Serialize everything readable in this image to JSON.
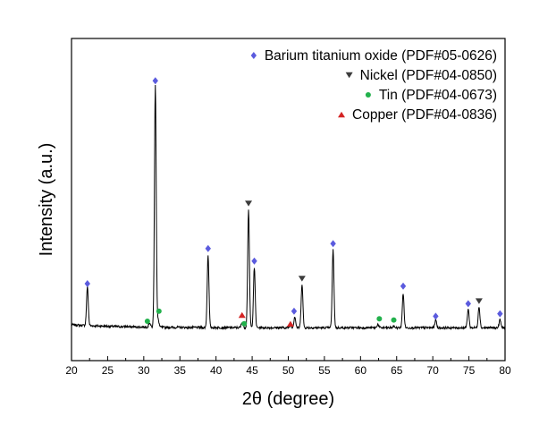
{
  "chart_data": {
    "type": "line",
    "title": "",
    "xlabel": "2θ (degree)",
    "ylabel": "Intensity (a.u.)",
    "xlim": [
      20,
      80
    ],
    "ylim": [
      0,
      100
    ],
    "x_ticks": [
      "20",
      "25",
      "30",
      "35",
      "40",
      "45",
      "50",
      "55",
      "60",
      "65",
      "70",
      "75",
      "80"
    ],
    "grid": false,
    "legend_position": "top-right",
    "line_color": "#000000",
    "peaks": [
      {
        "x": 22.2,
        "h": 15.5
      },
      {
        "x": 30.8,
        "h": 1.8
      },
      {
        "x": 31.6,
        "h": 97
      },
      {
        "x": 32.0,
        "h": 2.8
      },
      {
        "x": 38.9,
        "h": 29
      },
      {
        "x": 43.6,
        "h": 2.0
      },
      {
        "x": 44.5,
        "h": 47
      },
      {
        "x": 45.3,
        "h": 24
      },
      {
        "x": 50.3,
        "h": 1.2
      },
      {
        "x": 50.9,
        "h": 4.5
      },
      {
        "x": 51.9,
        "h": 17.5
      },
      {
        "x": 56.2,
        "h": 31
      },
      {
        "x": 62.4,
        "h": 1.4
      },
      {
        "x": 64.6,
        "h": 0.6
      },
      {
        "x": 65.9,
        "h": 13.5
      },
      {
        "x": 70.4,
        "h": 3.2
      },
      {
        "x": 74.9,
        "h": 7.5
      },
      {
        "x": 76.4,
        "h": 8.5
      },
      {
        "x": 79.3,
        "h": 3.2
      }
    ],
    "series": [
      {
        "name": "Barium titanium oxide (PDF#05-0626)",
        "marker": "diamond",
        "color": "#5b5bde",
        "points": [
          {
            "x": 22.2,
            "y": 20
          },
          {
            "x": 31.6,
            "y": 101
          },
          {
            "x": 38.9,
            "y": 34
          },
          {
            "x": 45.3,
            "y": 29
          },
          {
            "x": 50.8,
            "y": 9
          },
          {
            "x": 56.2,
            "y": 36
          },
          {
            "x": 65.9,
            "y": 19
          },
          {
            "x": 70.4,
            "y": 7
          },
          {
            "x": 74.9,
            "y": 12
          },
          {
            "x": 79.3,
            "y": 8
          }
        ]
      },
      {
        "name": "Nickel (PDF#04-0850)",
        "marker": "triangle-down",
        "color": "#3c3c3c",
        "points": [
          {
            "x": 44.5,
            "y": 52
          },
          {
            "x": 51.9,
            "y": 22
          },
          {
            "x": 76.4,
            "y": 13
          }
        ]
      },
      {
        "name": "Tin (PDF#04-0673)",
        "marker": "circle",
        "color": "#22b14c",
        "points": [
          {
            "x": 30.5,
            "y": 5
          },
          {
            "x": 32.1,
            "y": 9
          },
          {
            "x": 43.9,
            "y": 4
          },
          {
            "x": 62.6,
            "y": 6
          },
          {
            "x": 64.6,
            "y": 5.5
          }
        ]
      },
      {
        "name": "Copper (PDF#04-0836)",
        "marker": "triangle-up",
        "color": "#d42424",
        "points": [
          {
            "x": 43.6,
            "y": 7.5
          },
          {
            "x": 50.3,
            "y": 4
          }
        ]
      }
    ]
  }
}
